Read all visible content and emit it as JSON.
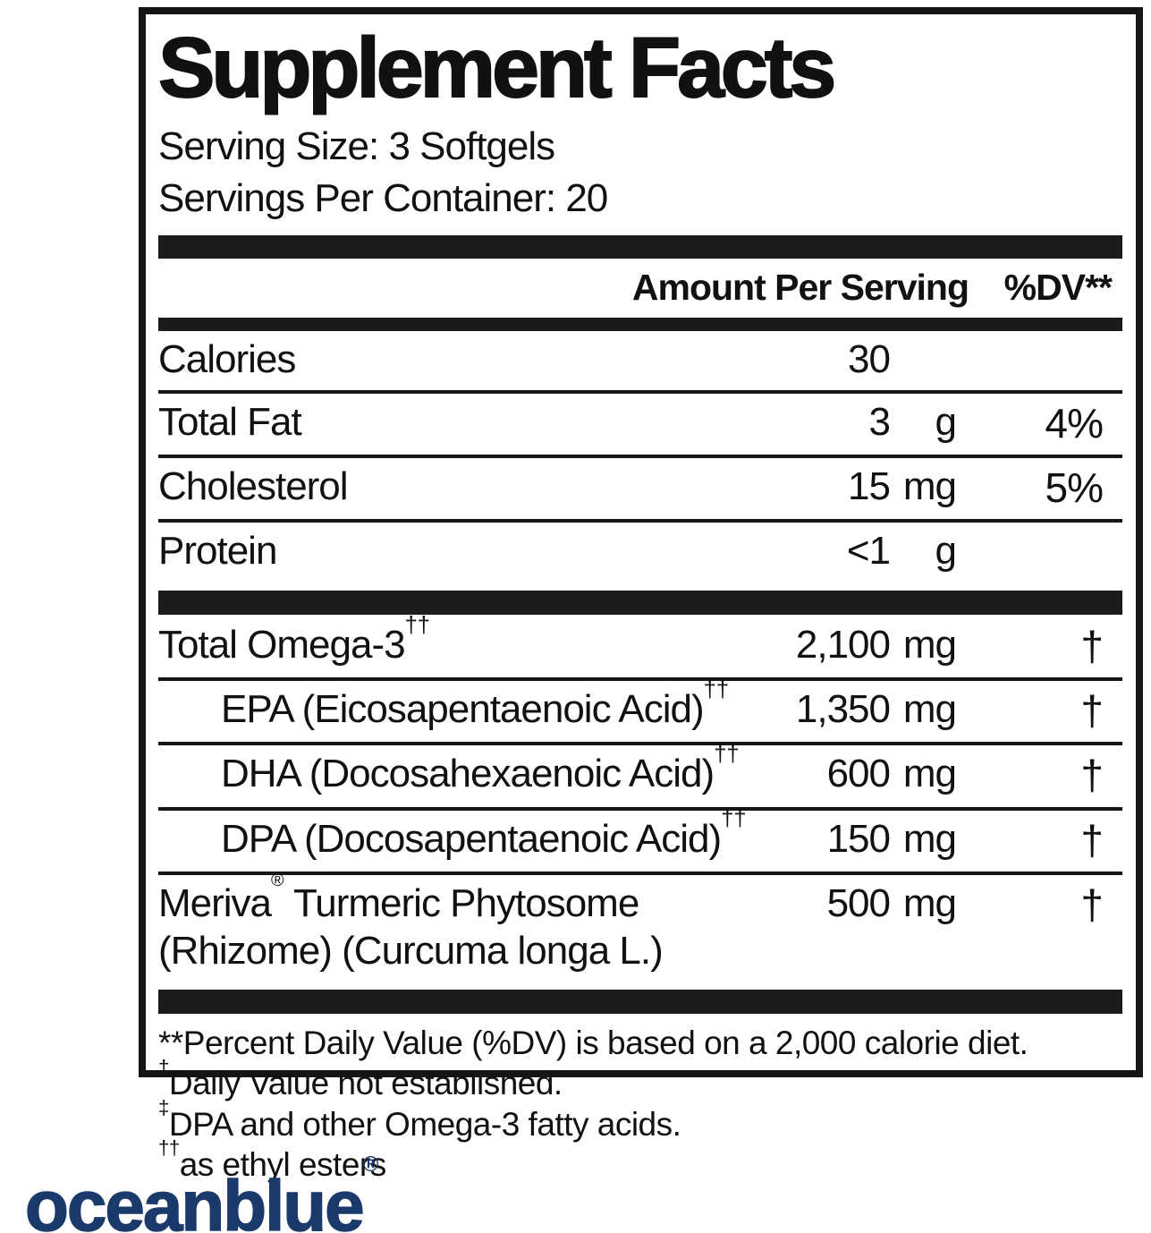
{
  "panel": {
    "title": "Supplement Facts",
    "serving_size": "Serving Size: 3 Softgels",
    "servings_per_container": "Servings Per Container: 20",
    "column_header": {
      "amount": "Amount Per Serving",
      "dv": "%DV**"
    }
  },
  "rows": [
    {
      "name": "Calories",
      "amount": "30",
      "unit": "",
      "dv": ""
    },
    {
      "name": "Total Fat",
      "amount": "3",
      "unit": "g",
      "dv": "4%"
    },
    {
      "name": "Cholesterol",
      "amount": "15",
      "unit": "mg",
      "dv": "5%"
    },
    {
      "name": "Protein",
      "amount": "<1",
      "unit": "g",
      "dv": ""
    },
    {
      "name": "Total Omega-3",
      "sup": "††",
      "amount": "2,100",
      "unit": "mg",
      "dv": "†"
    },
    {
      "name": "EPA (Eicosapentaenoic Acid)",
      "sup": "††",
      "amount": "1,350",
      "unit": "mg",
      "dv": "†"
    },
    {
      "name": "DHA (Docosahexaenoic Acid)",
      "sup": "††",
      "amount": "600",
      "unit": "mg",
      "dv": "†"
    },
    {
      "name": "DPA (Docosapentaenoic Acid)",
      "sup": "††",
      "amount": "150",
      "unit": "mg",
      "dv": "†"
    },
    {
      "name_pre": "Meriva",
      "reg": "®",
      "name_post": " Turmeric Phytosome",
      "name_line2": "(Rhizome) (Curcuma longa L.)",
      "amount": "500",
      "unit": "mg",
      "dv": "†"
    }
  ],
  "footnotes": [
    {
      "sup": "",
      "text": "**Percent Daily Value (%DV) is based on a 2,000 calorie diet."
    },
    {
      "sup": "†",
      "text": "Daily Value not established."
    },
    {
      "sup": "‡",
      "text": "DPA and other Omega-3 fatty acids."
    },
    {
      "sup": "††",
      "text": "as ethyl esters"
    }
  ],
  "logo": {
    "text": "oceanblue",
    "reg": "®",
    "color": "#1a3a6b"
  }
}
